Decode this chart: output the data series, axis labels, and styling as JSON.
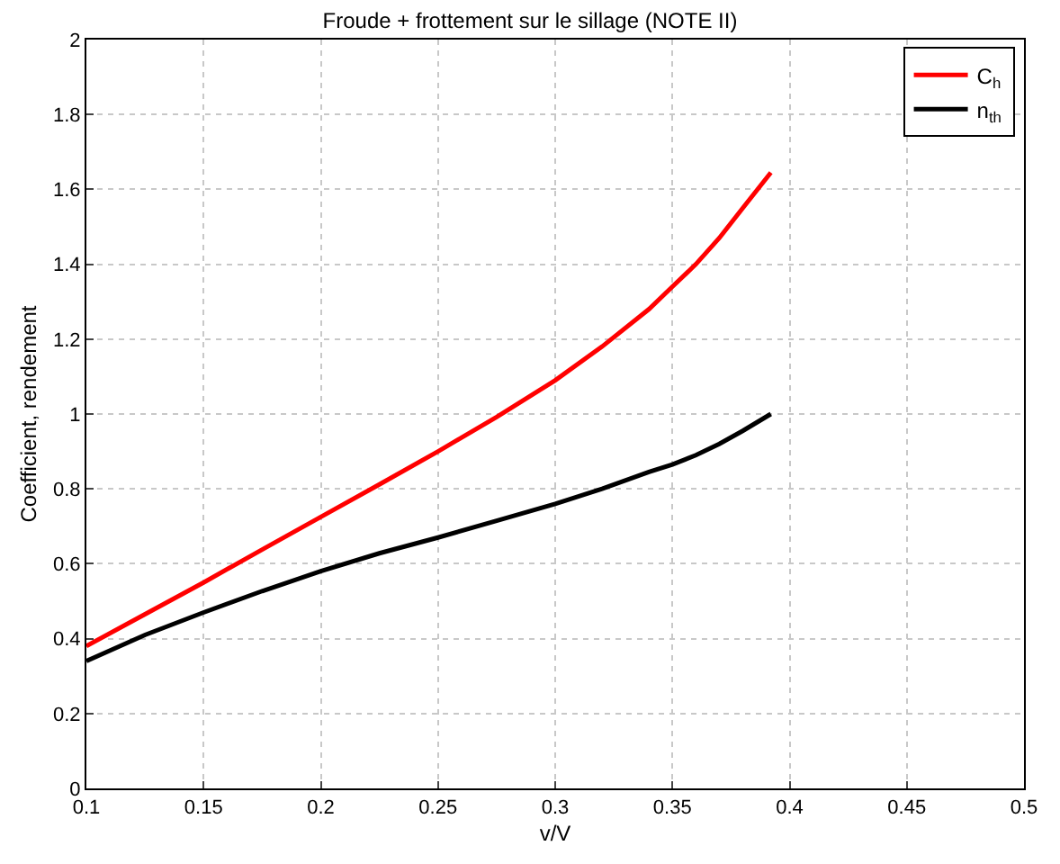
{
  "chart_data": {
    "type": "line",
    "title": "Froude + frottement sur le sillage (NOTE II)",
    "xlabel": "v/V",
    "ylabel": "Coefficient, rendement",
    "x": [
      0.1,
      0.125,
      0.15,
      0.175,
      0.2,
      0.225,
      0.25,
      0.275,
      0.3,
      0.32,
      0.34,
      0.35,
      0.36,
      0.37,
      0.38,
      0.392
    ],
    "series": [
      {
        "name": "C$_{h}$",
        "color": "#ff0000",
        "values": [
          0.38,
          0.465,
          0.55,
          0.638,
          0.725,
          0.812,
          0.9,
          0.992,
          1.09,
          1.18,
          1.28,
          1.34,
          1.4,
          1.47,
          1.55,
          1.645
        ]
      },
      {
        "name": "n$_{th}$",
        "color": "#000000",
        "values": [
          0.34,
          0.41,
          0.47,
          0.527,
          0.58,
          0.628,
          0.67,
          0.715,
          0.76,
          0.8,
          0.845,
          0.865,
          0.89,
          0.92,
          0.955,
          1.0
        ]
      }
    ],
    "xlim": [
      0.1,
      0.5
    ],
    "xticks": [
      0.1,
      0.15,
      0.2,
      0.25,
      0.3,
      0.35,
      0.4,
      0.45,
      0.5
    ],
    "ylim": [
      0,
      2
    ],
    "yticks": [
      0,
      0.2,
      0.4,
      0.6,
      0.8,
      1,
      1.2,
      1.4,
      1.6,
      1.8,
      2
    ],
    "grid": true,
    "legend": "top right",
    "line_style": "solid",
    "marker": "none"
  }
}
